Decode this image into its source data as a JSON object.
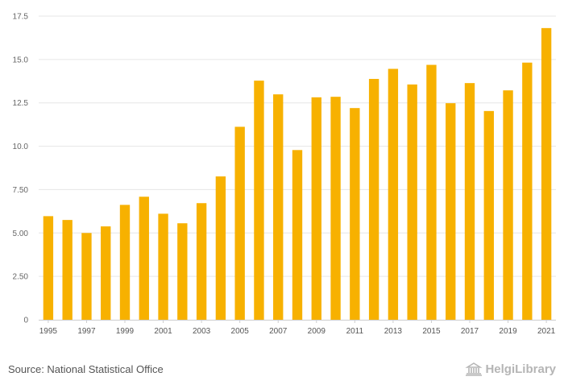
{
  "chart_data": {
    "type": "bar",
    "categories": [
      "1995",
      "1996",
      "1997",
      "1998",
      "1999",
      "2000",
      "2001",
      "2002",
      "2003",
      "2004",
      "2005",
      "2006",
      "2007",
      "2008",
      "2009",
      "2010",
      "2011",
      "2012",
      "2013",
      "2014",
      "2015",
      "2016",
      "2017",
      "2018",
      "2019",
      "2020",
      "2021"
    ],
    "x_tick_labels": [
      "1995",
      "1997",
      "1999",
      "2001",
      "2003",
      "2005",
      "2007",
      "2009",
      "2011",
      "2013",
      "2015",
      "2017",
      "2019",
      "2021"
    ],
    "values": [
      5.97,
      5.75,
      5.0,
      5.38,
      6.62,
      7.09,
      6.11,
      5.56,
      6.72,
      8.26,
      11.12,
      13.78,
      12.99,
      9.78,
      12.82,
      12.85,
      12.2,
      13.88,
      14.46,
      13.56,
      14.69,
      12.48,
      13.64,
      12.03,
      13.22,
      14.82,
      16.81
    ],
    "y_ticks": [
      "0",
      "2.50",
      "5.00",
      "7.50",
      "10.0",
      "12.5",
      "15.0",
      "17.5"
    ],
    "ylim": [
      0,
      17.5
    ],
    "title": "",
    "xlabel": "",
    "ylabel": "",
    "grid": true,
    "bar_color": "#f7b100"
  },
  "footer": {
    "source": "Source: National Statistical Office",
    "logo_text": "HelgiLibrary",
    "logo_icon": "library-building-icon"
  },
  "colors": {
    "grid": "#e6e6e6",
    "axis": "#cccccc",
    "logo": "#b5b5b5"
  }
}
